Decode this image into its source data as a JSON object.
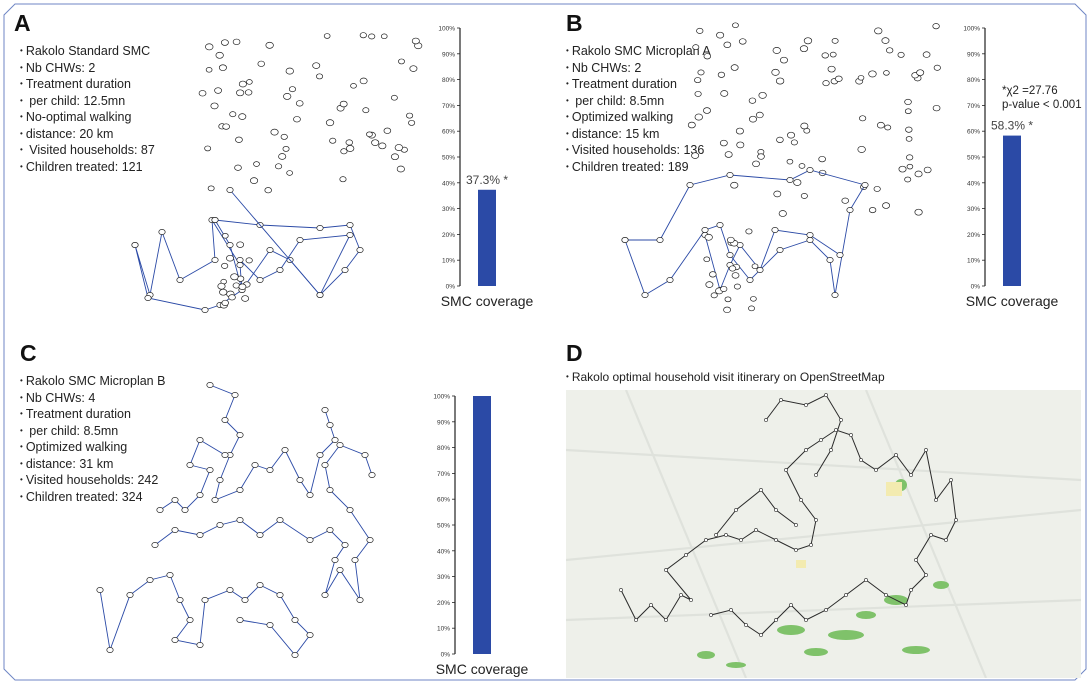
{
  "colors": {
    "route": "#2b4aa6",
    "bar": "#2b4aa6",
    "osm_route": "#2a2a2a",
    "osm_bg": "#eef0ea",
    "osm_green": "#7fc26a",
    "osm_yellow": "#f3ebb0"
  },
  "panels": [
    {
      "letter": "A",
      "info": [
        "Rakolo Standard SMC",
        "Nb CHWs: 2",
        "Treatment duration",
        " per child: 12.5mn",
        "No-optimal walking",
        "distance: 20 km",
        " Visited households: 87",
        "Children treated: 121"
      ]
    },
    {
      "letter": "B",
      "info": [
        "Rakolo SMC Microplan A",
        "Nb CHWs: 2",
        "Treatment duration",
        " per child: 8.5mn",
        "Optimized walking",
        "distance: 15 km",
        "Visited households: 136",
        "Children treated: 189"
      ]
    },
    {
      "letter": "C",
      "info": [
        "Rakolo SMC Microplan B",
        "Nb CHWs: 4",
        "Treatment duration",
        " per child: 8.5mn",
        "Optimized walking",
        "distance: 31 km",
        "Visited households: 242",
        "Children treated: 324"
      ]
    },
    {
      "letter": "D",
      "info": [
        "Rakolo optimal household visit itinerary on OpenStreetMap"
      ]
    }
  ],
  "chi_note": "*χ2 =27.76\np-value < 0.001",
  "chart_data": [
    {
      "type": "bar",
      "panel": "A",
      "categories": [
        "SMC coverage"
      ],
      "values": [
        37.3
      ],
      "value_label": "37.3% *",
      "ylim": [
        0,
        100
      ],
      "yticks": [
        "0%",
        "10%",
        "20%",
        "30%",
        "40%",
        "50%",
        "60%",
        "70%",
        "80%",
        "90%",
        "100%"
      ],
      "xlabel": "SMC coverage"
    },
    {
      "type": "bar",
      "panel": "B",
      "categories": [
        "SMC coverage"
      ],
      "values": [
        58.3
      ],
      "value_label": "58.3% *",
      "ylim": [
        0,
        100
      ],
      "yticks": [
        "0%",
        "10%",
        "20%",
        "30%",
        "40%",
        "50%",
        "60%",
        "70%",
        "80%",
        "90%",
        "100%"
      ],
      "xlabel": "SMC coverage"
    },
    {
      "type": "bar",
      "panel": "C",
      "categories": [
        "SMC coverage"
      ],
      "values": [
        100
      ],
      "value_label": "",
      "ylim": [
        0,
        100
      ],
      "yticks": [
        "0%",
        "10%",
        "20%",
        "30%",
        "40%",
        "50%",
        "60%",
        "70%",
        "80%",
        "90%",
        "100%"
      ],
      "xlabel": "SMC coverage"
    }
  ]
}
